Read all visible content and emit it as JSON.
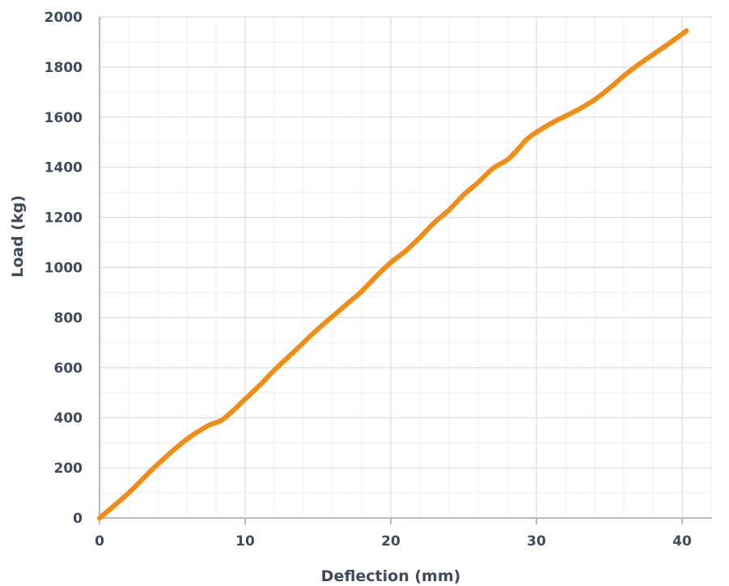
{
  "chart_data": {
    "type": "line",
    "title": "",
    "xlabel": "Deflection (mm)",
    "ylabel": "Load (kg)",
    "xlim": [
      0,
      43
    ],
    "ylim": [
      0,
      2000
    ],
    "x_ticks": [
      0,
      10,
      20,
      30,
      40
    ],
    "y_ticks": [
      0,
      200,
      400,
      600,
      800,
      1000,
      1200,
      1400,
      1600,
      1800,
      2000
    ],
    "grid": true,
    "minor_grid": true,
    "legend": "none",
    "colors": {
      "line": "#f28c12",
      "grid_major": "#d9dde3",
      "grid_minor": "#eef0f3",
      "text": "#3f4a5c"
    },
    "series": [
      {
        "x": [
          0,
          2,
          4,
          6,
          7.5,
          8.5,
          10,
          11,
          12,
          13,
          14,
          15,
          16,
          17,
          18,
          19,
          20,
          21,
          22,
          23,
          24,
          25,
          26,
          27,
          28,
          28.7,
          29.3,
          30,
          31,
          32,
          33,
          34,
          35,
          36,
          37,
          38,
          39,
          40.3
        ],
        "y": [
          0,
          100,
          215,
          315,
          370,
          395,
          475,
          530,
          590,
          645,
          700,
          755,
          805,
          855,
          905,
          965,
          1020,
          1065,
          1120,
          1180,
          1230,
          1290,
          1340,
          1395,
          1430,
          1470,
          1510,
          1540,
          1575,
          1605,
          1635,
          1670,
          1715,
          1765,
          1810,
          1850,
          1890,
          1945
        ]
      }
    ]
  }
}
